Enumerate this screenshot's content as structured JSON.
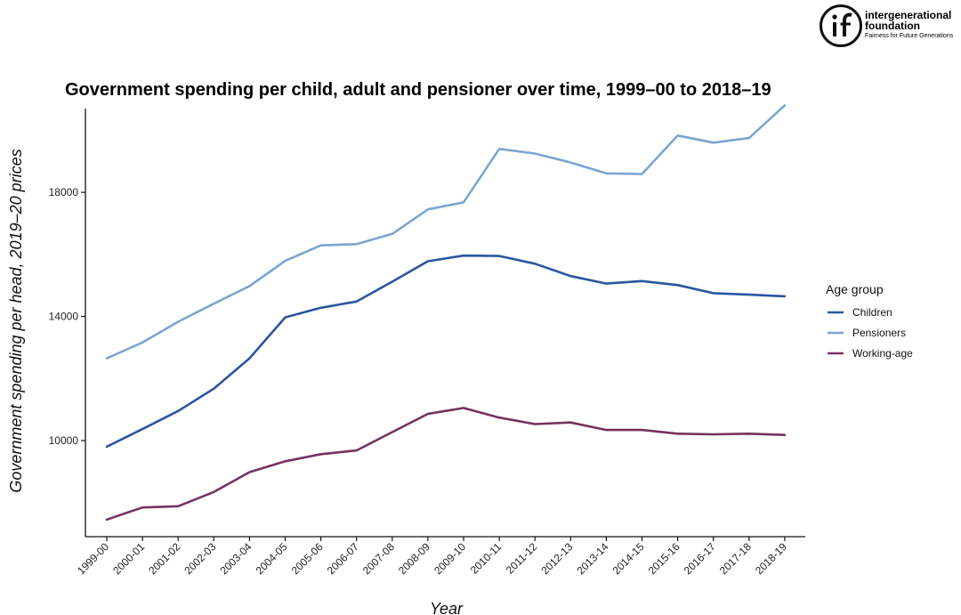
{
  "logo": {
    "line1": "intergenerational",
    "line2": "foundation",
    "tagline": "Fairness for Future Generations"
  },
  "chart_data": {
    "type": "line",
    "title": "Government spending per child, adult and pensioner over time, 1999–00 to 2018–19",
    "xlabel": "Year",
    "ylabel": "Government spending per head, 2019–20 prices",
    "categories": [
      "1999-00",
      "2000-01",
      "2001-02",
      "2002-03",
      "2003-04",
      "2004-05",
      "2005-06",
      "2006-07",
      "2007-08",
      "2008-09",
      "2009-10",
      "2010-11",
      "2011-12",
      "2012-13",
      "2013-14",
      "2014-15",
      "2015-16",
      "2016-17",
      "2017-18",
      "2018-19"
    ],
    "yticks": [
      10000,
      14000,
      18000
    ],
    "ylim": [
      6900,
      20700
    ],
    "legend_title": "Age group",
    "legend_position": "right",
    "series": [
      {
        "name": "Children",
        "color": "#2a56a0",
        "values": [
          9800,
          10370,
          10950,
          11670,
          12650,
          13970,
          14280,
          14480,
          15120,
          15780,
          15960,
          15950,
          15700,
          15300,
          15060,
          15140,
          15010,
          14750,
          14700,
          14650
        ]
      },
      {
        "name": "Pensioners",
        "color": "#79a6d2",
        "values": [
          12650,
          13160,
          13830,
          14410,
          14980,
          15790,
          16290,
          16330,
          16660,
          17450,
          17680,
          19400,
          19250,
          18960,
          18610,
          18590,
          19830,
          19600,
          19750,
          20800
        ]
      },
      {
        "name": "Working-age",
        "color": "#74335e",
        "values": [
          7450,
          7840,
          7880,
          8340,
          8980,
          9330,
          9560,
          9680,
          10270,
          10860,
          11050,
          10740,
          10530,
          10580,
          10340,
          10340,
          10220,
          10200,
          10220,
          10180
        ]
      }
    ]
  }
}
